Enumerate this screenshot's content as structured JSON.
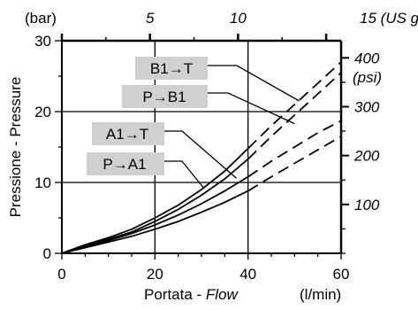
{
  "chart_data": {
    "type": "line",
    "title": "",
    "xlabel": {
      "main": "Portata - ",
      "italic": "Flow"
    },
    "ylabel": "Pressione - Pressure",
    "x_unit": "(l/min)",
    "y_unit": "(bar)",
    "xlim": [
      0,
      60
    ],
    "ylim": [
      0,
      30
    ],
    "x_ticks": [
      "0",
      "20",
      "40",
      "60"
    ],
    "y_ticks": [
      "0",
      "10",
      "20",
      "30"
    ],
    "top_axis": {
      "unit": "(US gpm)",
      "unit_number": "15",
      "tick_labels": [
        "5",
        "10"
      ],
      "max": 15.85
    },
    "right_axis": {
      "unit": "(psi)",
      "unit_prefix": "(",
      "unit_italic": "psi",
      "unit_suffix": ")",
      "tick_labels": [
        "400",
        "300",
        "200",
        "100"
      ],
      "max": 435
    },
    "grid": {
      "x": [
        20,
        40
      ],
      "y": [
        10,
        20
      ]
    },
    "series": [
      {
        "name": "B1→T",
        "solid": [
          [
            0,
            0
          ],
          [
            5,
            1.2
          ],
          [
            10,
            2.2
          ],
          [
            15,
            3.4
          ],
          [
            20,
            5
          ],
          [
            25,
            6.8
          ],
          [
            30,
            9
          ],
          [
            35,
            11.6
          ],
          [
            40,
            14.8
          ]
        ],
        "dashed": [
          [
            40,
            14.8
          ],
          [
            45,
            18
          ],
          [
            50,
            21
          ],
          [
            55,
            24
          ],
          [
            60,
            27
          ]
        ]
      },
      {
        "name": "P→B1",
        "solid": [
          [
            0,
            0
          ],
          [
            5,
            1
          ],
          [
            10,
            2
          ],
          [
            15,
            3
          ],
          [
            20,
            4.5
          ],
          [
            25,
            6.2
          ],
          [
            30,
            8.2
          ],
          [
            35,
            10.5
          ],
          [
            40,
            13.3
          ]
        ],
        "dashed": [
          [
            40,
            13.3
          ],
          [
            45,
            16.5
          ],
          [
            50,
            19.5
          ],
          [
            55,
            22.5
          ],
          [
            60,
            25.5
          ]
        ]
      },
      {
        "name": "A1→T",
        "solid": [
          [
            0,
            0
          ],
          [
            5,
            0.9
          ],
          [
            10,
            1.8
          ],
          [
            15,
            2.8
          ],
          [
            20,
            4
          ],
          [
            25,
            5.4
          ],
          [
            30,
            7
          ],
          [
            35,
            8.8
          ],
          [
            40,
            10.8
          ]
        ],
        "dashed": [
          [
            40,
            10.8
          ],
          [
            45,
            13
          ],
          [
            50,
            15
          ],
          [
            55,
            17
          ],
          [
            60,
            18.7
          ]
        ]
      },
      {
        "name": "P→A1",
        "solid": [
          [
            0,
            0
          ],
          [
            5,
            0.8
          ],
          [
            10,
            1.6
          ],
          [
            15,
            2.4
          ],
          [
            20,
            3.4
          ],
          [
            25,
            4.5
          ],
          [
            30,
            5.8
          ],
          [
            35,
            7.2
          ],
          [
            40,
            8.8
          ]
        ],
        "dashed": [
          [
            40,
            8.8
          ],
          [
            45,
            10.8
          ],
          [
            50,
            12.7
          ],
          [
            55,
            14.6
          ],
          [
            60,
            16.5
          ]
        ]
      }
    ]
  }
}
